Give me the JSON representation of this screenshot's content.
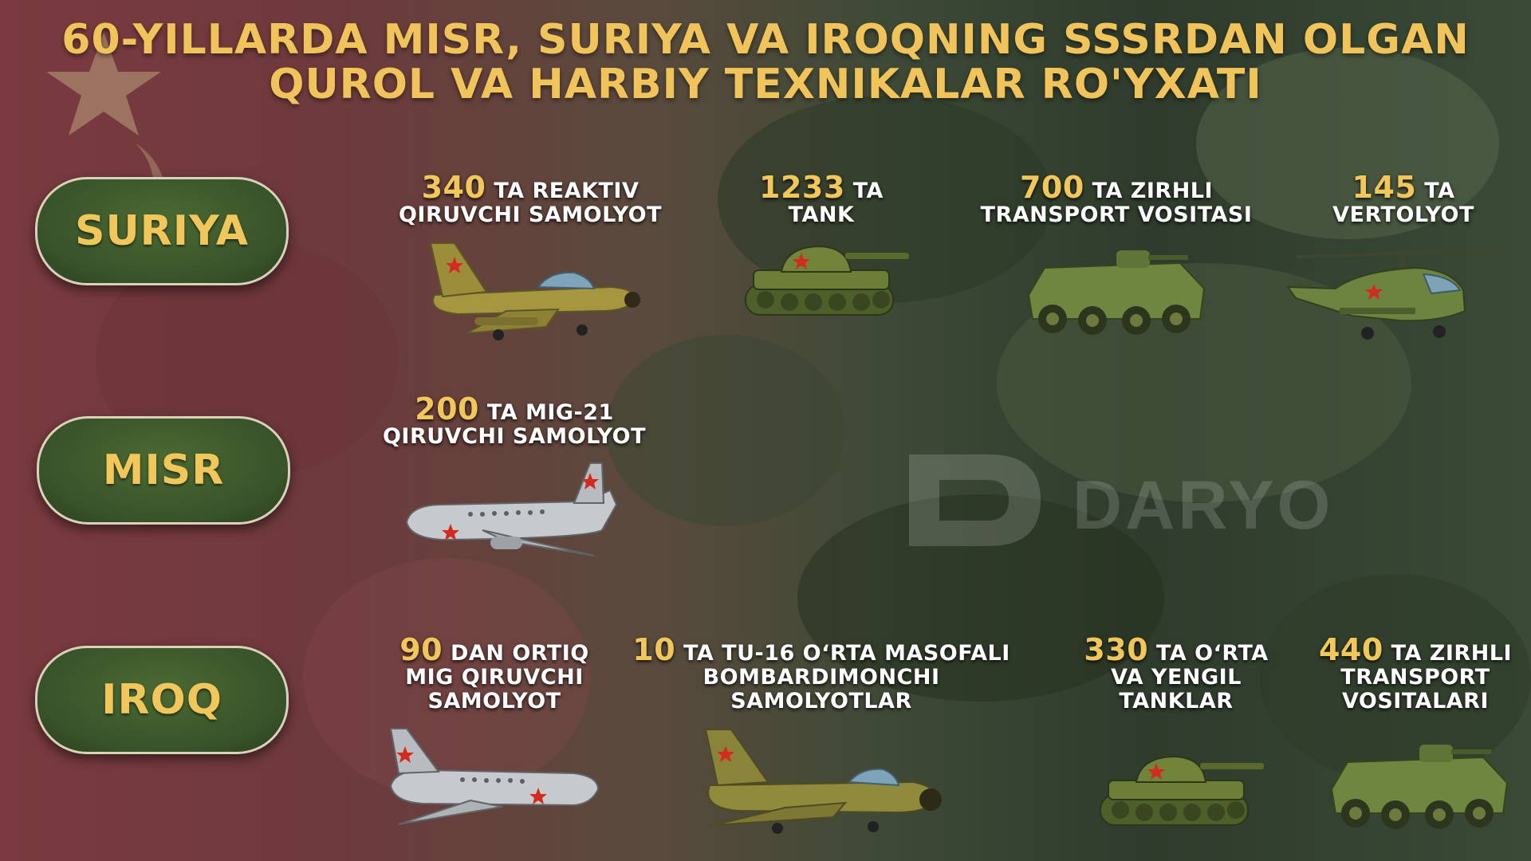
{
  "title": {
    "line1": "60-YILLARDA MISR, SURIYA VA IROQNING SSSRDAN OLGAN",
    "line2": "QUROL VA HARBIY TEXNIKALAR RO'YXATI"
  },
  "countries": {
    "suriya": "SURIYA",
    "misr": "MISR",
    "iroq": "IROQ"
  },
  "suriya_items": [
    {
      "num": "340",
      "text_a": " TA REAKTIV",
      "text_b": "QIRUVCHI SAMOLYOT",
      "icon": "jet-fighter-icon"
    },
    {
      "num": "1233",
      "text_a": " TA",
      "text_b": "TANK",
      "icon": "tank-icon"
    },
    {
      "num": "700",
      "text_a": " TA ZIRHLI",
      "text_b": "TRANSPORT VOSITASI",
      "icon": "armored-vehicle-icon"
    },
    {
      "num": "145",
      "text_a": " TA",
      "text_b": "VERTOLYOT",
      "icon": "helicopter-icon"
    }
  ],
  "misr_items": [
    {
      "num": "200",
      "text_a": " TA MIG-21",
      "text_b": "QIRUVCHI SAMOLYOT",
      "icon": "airliner-icon"
    }
  ],
  "iroq_items": [
    {
      "num": "90",
      "text_a": " DAN ORTIQ",
      "text_b": "MIG QIRUVCHI",
      "text_c": "SAMOLYOT",
      "icon": "airliner-icon"
    },
    {
      "num": "10",
      "text_a": " TA TU-16 O‘RTA MASOFALI",
      "text_b": "BOMBARDIMONCHI",
      "text_c": "SAMOLYOTLAR",
      "icon": "jet-fighter-icon"
    },
    {
      "num": "330",
      "text_a": " TA O‘RTA",
      "text_b": "VA YENGIL",
      "text_c": "TANKLAR",
      "icon": "tank-icon"
    },
    {
      "num": "440",
      "text_a": " TA ZIRHLI",
      "text_b": "TRANSPORT",
      "text_c": "VOSITALARI",
      "icon": "armored-vehicle-icon"
    }
  ],
  "watermark": "DARYO",
  "colors": {
    "accent_gold": "#f1c65a",
    "pill_green": "#3c5a2c",
    "text_white": "#ffffff"
  }
}
